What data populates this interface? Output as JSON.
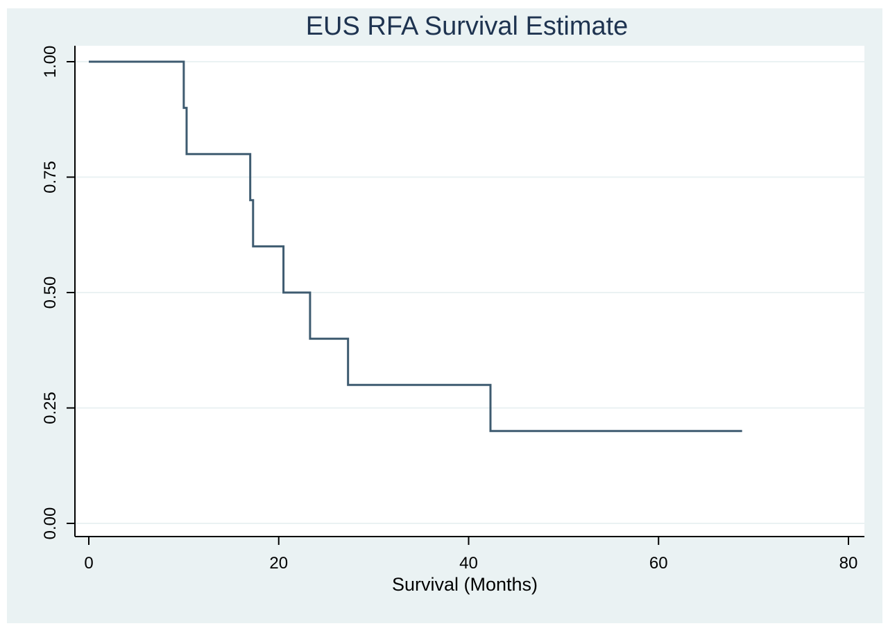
{
  "chart_data": {
    "type": "line",
    "title": "EUS RFA Survival Estimate",
    "xlabel": "Survival (Months)",
    "ylabel": "",
    "xlim": [
      0,
      80
    ],
    "ylim": [
      0,
      1
    ],
    "x_ticks": [
      0,
      20,
      40,
      60,
      80
    ],
    "x_tick_labels": [
      "0",
      "20",
      "40",
      "60",
      "80"
    ],
    "y_ticks": [
      0,
      0.25,
      0.5,
      0.75,
      1
    ],
    "y_tick_labels": [
      "0.00",
      "0.25",
      "0.50",
      "0.75",
      "1.00"
    ],
    "step": true,
    "grid": true,
    "series": [
      {
        "x": [
          0,
          10.0,
          10.3,
          17.0,
          17.3,
          20.5,
          23.3,
          27.3,
          42.3,
          68.8
        ],
        "y": [
          1.0,
          0.9,
          0.8,
          0.7,
          0.6,
          0.5,
          0.4,
          0.3,
          0.2,
          0.2
        ]
      }
    ],
    "colors": {
      "outer_background": "#eaf2f3",
      "plot_background": "#ffffff",
      "line": "#3e5b70",
      "grid": "#eaf2f3",
      "axis": "#000000",
      "title": "#1e3350"
    }
  }
}
